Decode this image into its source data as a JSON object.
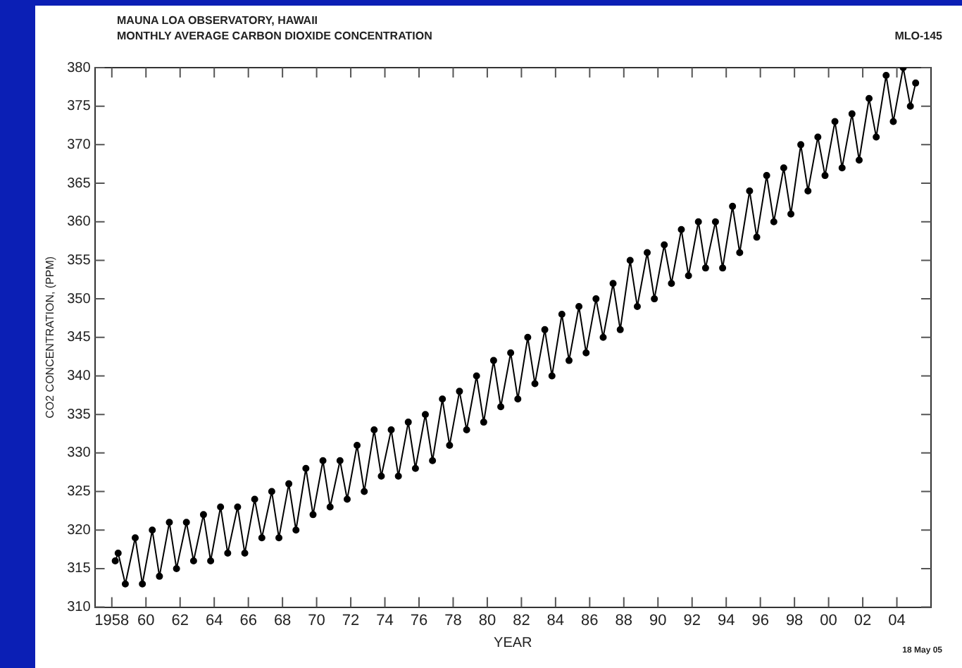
{
  "chart_data": {
    "type": "line",
    "title": "MAUNA LOA OBSERVATORY, HAWAII",
    "subtitle": "MONTHLY AVERAGE CARBON DIOXIDE CONCENTRATION",
    "xlabel": "YEAR",
    "ylabel": "CO2 CONCENTRATION, (PPM)",
    "annotations": [
      "MLO-145",
      "18 May 05"
    ],
    "x": [
      1958.2,
      1958.37,
      1958.79,
      1959.37,
      1959.79,
      1960.37,
      1960.79,
      1961.37,
      1961.79,
      1962.37,
      1962.79,
      1963.37,
      1963.79,
      1964.37,
      1964.79,
      1965.37,
      1965.79,
      1966.37,
      1966.79,
      1967.37,
      1967.79,
      1968.37,
      1968.79,
      1969.37,
      1969.79,
      1970.37,
      1970.79,
      1971.37,
      1971.79,
      1972.37,
      1972.79,
      1973.37,
      1973.79,
      1974.37,
      1974.79,
      1975.37,
      1975.79,
      1976.37,
      1976.79,
      1977.37,
      1977.79,
      1978.37,
      1978.79,
      1979.37,
      1979.79,
      1980.37,
      1980.79,
      1981.37,
      1981.79,
      1982.37,
      1982.79,
      1983.37,
      1983.79,
      1984.37,
      1984.79,
      1985.37,
      1985.79,
      1986.37,
      1986.79,
      1987.37,
      1987.79,
      1988.37,
      1988.79,
      1989.37,
      1989.79,
      1990.37,
      1990.79,
      1991.37,
      1991.79,
      1992.37,
      1992.79,
      1993.37,
      1993.79,
      1994.37,
      1994.79,
      1995.37,
      1995.79,
      1996.37,
      1996.79,
      1997.37,
      1997.79,
      1998.37,
      1998.79,
      1999.37,
      1999.79,
      2000.37,
      2000.79,
      2001.37,
      2001.79,
      2002.37,
      2002.79,
      2003.37,
      2003.79,
      2004.37,
      2004.79,
      2005.1
    ],
    "series": [
      {
        "color": "#000000",
        "values": [
          316,
          317,
          313,
          319,
          313,
          320,
          314,
          321,
          315,
          321,
          316,
          322,
          316,
          323,
          317,
          323,
          317,
          324,
          319,
          325,
          319,
          326,
          320,
          328,
          322,
          329,
          323,
          329,
          324,
          331,
          325,
          333,
          327,
          333,
          327,
          334,
          328,
          335,
          329,
          337,
          331,
          338,
          333,
          340,
          334,
          342,
          336,
          343,
          337,
          345,
          339,
          346,
          340,
          348,
          342,
          349,
          343,
          350,
          345,
          352,
          346,
          355,
          349,
          356,
          350,
          357,
          352,
          359,
          353,
          360,
          354,
          360,
          354,
          362,
          356,
          364,
          358,
          366,
          360,
          367,
          361,
          370,
          364,
          371,
          366,
          373,
          367,
          374,
          368,
          376,
          371,
          379,
          373,
          380,
          375,
          378
        ]
      }
    ],
    "xlim": [
      1957,
      2006
    ],
    "xticks": [
      1958,
      {
        "value": 1960,
        "label": "60"
      },
      {
        "value": 1962,
        "label": "62"
      },
      {
        "value": 1964,
        "label": "64"
      },
      {
        "value": 1966,
        "label": "66"
      },
      {
        "value": 1968,
        "label": "68"
      },
      {
        "value": 1970,
        "label": "70"
      },
      {
        "value": 1972,
        "label": "72"
      },
      {
        "value": 1974,
        "label": "74"
      },
      {
        "value": 1976,
        "label": "76"
      },
      {
        "value": 1978,
        "label": "78"
      },
      {
        "value": 1980,
        "label": "80"
      },
      {
        "value": 1982,
        "label": "82"
      },
      {
        "value": 1984,
        "label": "84"
      },
      {
        "value": 1986,
        "label": "86"
      },
      {
        "value": 1988,
        "label": "88"
      },
      {
        "value": 1990,
        "label": "90"
      },
      {
        "value": 1992,
        "label": "92"
      },
      {
        "value": 1994,
        "label": "94"
      },
      {
        "value": 1996,
        "label": "96"
      },
      {
        "value": 1998,
        "label": "98"
      },
      {
        "value": 2000,
        "label": "00"
      },
      {
        "value": 2002,
        "label": "02"
      },
      {
        "value": 2004,
        "label": "04"
      }
    ],
    "ylim": [
      310,
      380
    ],
    "yticks": [
      310,
      315,
      320,
      325,
      330,
      335,
      340,
      345,
      350,
      355,
      360,
      365,
      370,
      375,
      380
    ],
    "grid": false,
    "legend": false,
    "marker": "circle",
    "line_style": "solid"
  }
}
